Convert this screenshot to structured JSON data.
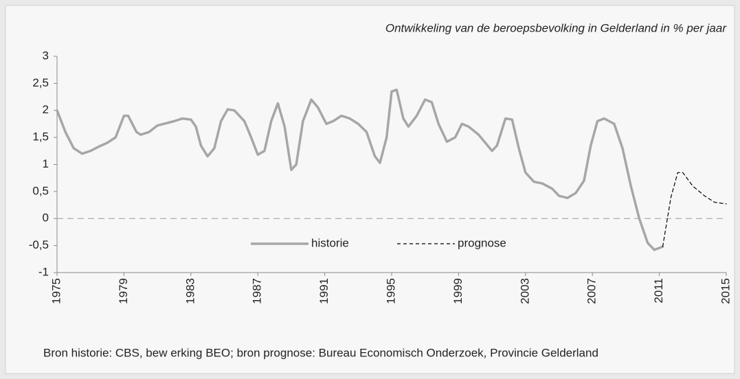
{
  "chart_data": {
    "type": "line",
    "title": "Ontwikkeling van de beroepsbevolking in Gelderland in % per jaar",
    "source": "Bron historie: CBS, bew erking BEO; bron prognose: Bureau Economisch Onderzoek, Provincie Gelderland",
    "xlim": [
      1975,
      2015
    ],
    "xticks": [
      1975,
      1979,
      1983,
      1987,
      1991,
      1995,
      1999,
      2003,
      2007,
      2011,
      2015
    ],
    "ylim": [
      -1,
      3
    ],
    "yticks": [
      -1,
      {
        "value": -0.5,
        "label": "-0,5"
      },
      0,
      {
        "value": 0.5,
        "label": "0,5"
      },
      1,
      {
        "value": 1.5,
        "label": "1,5"
      },
      2,
      {
        "value": 2.5,
        "label": "2,5"
      },
      3
    ],
    "series": [
      {
        "name": "historie",
        "color": "#a6a6a6",
        "dashed": false,
        "x": [
          1975,
          1975.5,
          1976,
          1976.5,
          1977,
          1977.5,
          1978,
          1978.5,
          1979,
          1979.25,
          1979.75,
          1980,
          1980.5,
          1981,
          1982,
          1982.5,
          1983,
          1983.3,
          1983.6,
          1984,
          1984.4,
          1984.8,
          1985.2,
          1985.6,
          1986.2,
          1986.6,
          1987,
          1987.4,
          1987.8,
          1988.2,
          1988.6,
          1989,
          1989.3,
          1989.7,
          1990.2,
          1990.6,
          1991.1,
          1991.5,
          1992,
          1992.5,
          1993,
          1993.5,
          1994,
          1994.3,
          1994.7,
          1995,
          1995.3,
          1995.7,
          1996,
          1996.5,
          1997,
          1997.4,
          1997.8,
          1998.3,
          1998.8,
          1999.2,
          1999.6,
          2000.2,
          2001,
          2001.3,
          2001.8,
          2002.2,
          2002.6,
          2003,
          2003.5,
          2004,
          2004.6,
          2005,
          2005.5,
          2006,
          2006.5,
          2006.9,
          2007.3,
          2007.7,
          2008.3,
          2008.8,
          2009.3,
          2009.8,
          2010.3,
          2010.7,
          2011.2
        ],
        "values": [
          2.0,
          1.6,
          1.3,
          1.2,
          1.25,
          1.33,
          1.4,
          1.5,
          1.9,
          1.9,
          1.6,
          1.55,
          1.6,
          1.72,
          1.8,
          1.85,
          1.83,
          1.7,
          1.35,
          1.15,
          1.3,
          1.8,
          2.02,
          2.0,
          1.8,
          1.5,
          1.18,
          1.25,
          1.8,
          2.13,
          1.7,
          0.9,
          1.0,
          1.8,
          2.2,
          2.05,
          1.75,
          1.8,
          1.9,
          1.85,
          1.75,
          1.6,
          1.15,
          1.03,
          1.5,
          2.35,
          2.38,
          1.85,
          1.7,
          1.9,
          2.2,
          2.15,
          1.75,
          1.42,
          1.5,
          1.75,
          1.7,
          1.55,
          1.25,
          1.35,
          1.85,
          1.83,
          1.3,
          0.85,
          0.68,
          0.65,
          0.55,
          0.42,
          0.38,
          0.47,
          0.7,
          1.35,
          1.8,
          1.85,
          1.75,
          1.3,
          0.6,
          0.0,
          -0.45,
          -0.58,
          -0.52
        ]
      },
      {
        "name": "prognose",
        "color": "#000000",
        "dashed": true,
        "x": [
          2011.2,
          2011.7,
          2012.1,
          2012.4,
          2013,
          2013.7,
          2014.3,
          2015
        ],
        "values": [
          -0.52,
          0.4,
          0.85,
          0.85,
          0.6,
          0.42,
          0.3,
          0.27
        ]
      }
    ]
  }
}
